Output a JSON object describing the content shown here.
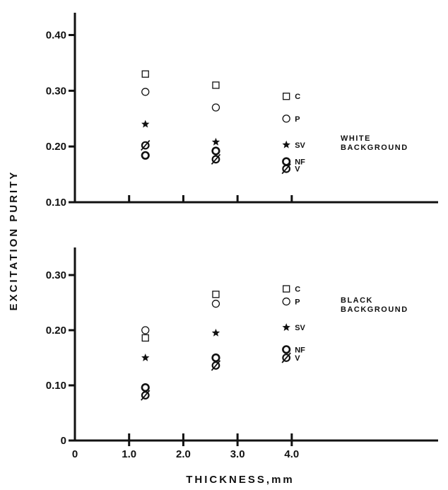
{
  "chart_data": {
    "type": "scatter",
    "xlabel": "THICKNESS,mm",
    "ylabel": "EXCITATION PURITY",
    "x_ticks": [
      0,
      1.0,
      2.0,
      3.0,
      4.0
    ],
    "x_tick_labels": [
      "0",
      "1.0",
      "2.0",
      "3.0",
      "4.0"
    ],
    "xlim": [
      0,
      6.7
    ],
    "grid": false,
    "legend": "point labels at right of each panel",
    "panels": [
      {
        "name": "white",
        "label_lines": [
          "WHITE",
          "BACKGROUND"
        ],
        "ylim": [
          0.1,
          0.44
        ],
        "y_ticks": [
          0.1,
          0.2,
          0.3,
          0.4
        ],
        "y_tick_labels": [
          "0.10",
          "0.20",
          "0.30",
          "0.40"
        ],
        "series": [
          {
            "name": "C",
            "marker": "square",
            "x": [
              1.3,
              2.6,
              3.9
            ],
            "y": [
              0.33,
              0.31,
              0.29
            ]
          },
          {
            "name": "P",
            "marker": "circle",
            "x": [
              1.3,
              2.6,
              3.9
            ],
            "y": [
              0.298,
              0.27,
              0.25
            ]
          },
          {
            "name": "SV",
            "marker": "star",
            "x": [
              1.3,
              2.6,
              3.9
            ],
            "y": [
              0.24,
              0.208,
              0.203
            ]
          },
          {
            "name": "NF",
            "marker": "circle-bold",
            "x": [
              1.3,
              2.6,
              3.9
            ],
            "y": [
              0.184,
              0.192,
              0.173
            ]
          },
          {
            "name": "V",
            "marker": "circle-slash",
            "x": [
              1.3,
              2.6,
              3.9
            ],
            "y": [
              0.202,
              0.177,
              0.16
            ]
          }
        ]
      },
      {
        "name": "black",
        "label_lines": [
          "BLACK",
          "BACKGROUND"
        ],
        "ylim": [
          0,
          0.35
        ],
        "y_ticks": [
          0,
          0.1,
          0.2,
          0.3
        ],
        "y_tick_labels": [
          "0",
          "0.10",
          "0.20",
          "0.30"
        ],
        "series": [
          {
            "name": "C",
            "marker": "square",
            "x": [
              1.3,
              2.6,
              3.9
            ],
            "y": [
              0.186,
              0.265,
              0.275
            ]
          },
          {
            "name": "P",
            "marker": "circle",
            "x": [
              1.3,
              2.6,
              3.9
            ],
            "y": [
              0.2,
              0.248,
              0.252
            ]
          },
          {
            "name": "SV",
            "marker": "star",
            "x": [
              1.3,
              2.6,
              3.9
            ],
            "y": [
              0.15,
              0.195,
              0.205
            ]
          },
          {
            "name": "NF",
            "marker": "circle-bold",
            "x": [
              1.3,
              2.6,
              3.9
            ],
            "y": [
              0.096,
              0.15,
              0.165
            ]
          },
          {
            "name": "V",
            "marker": "circle-slash",
            "x": [
              1.3,
              2.6,
              3.9
            ],
            "y": [
              0.082,
              0.136,
              0.15
            ]
          }
        ]
      }
    ]
  }
}
